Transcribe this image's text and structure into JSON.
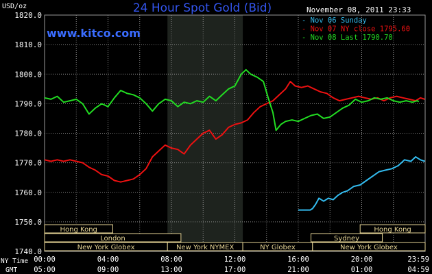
{
  "chart_data": {
    "type": "line",
    "title": "24 Hour Spot Gold (Bid)",
    "site": "www.kitco.com",
    "timestamp": "November 08, 2011 23:33",
    "ylabel": "USD/oz",
    "ylim": [
      1740,
      1820
    ],
    "y_ticks": [
      "1820.0",
      "1810.0",
      "1800.0",
      "1790.0",
      "1780.0",
      "1770.0",
      "1760.0",
      "1750.0",
      "1740.0"
    ],
    "xlim": [
      0,
      24
    ],
    "x_ticks_ny": [
      "00:00",
      "04:00",
      "08:00",
      "12:00",
      "16:00",
      "20:00",
      "23:59"
    ],
    "x_ticks_gmt": [
      "05:00",
      "09:00",
      "13:00",
      "17:00",
      "21:00",
      "01:00",
      "04:59"
    ],
    "x_row_label_ny": "NY Time",
    "x_row_label_gmt": "GMT",
    "highlight_band": [
      7.75,
      12.5
    ],
    "grid": true,
    "legend_position": "top-right",
    "series": [
      {
        "name": "Nov 06 Sunday",
        "color": "#33bbee",
        "points": [
          [
            16.0,
            1754.0
          ],
          [
            16.6,
            1754.0
          ],
          [
            16.75,
            1754.0
          ],
          [
            16.9,
            1754.5
          ],
          [
            17.1,
            1756.0
          ],
          [
            17.3,
            1758.0
          ],
          [
            17.6,
            1757.0
          ],
          [
            17.9,
            1758.0
          ],
          [
            18.2,
            1757.5
          ],
          [
            18.5,
            1759.0
          ],
          [
            18.8,
            1760.0
          ],
          [
            19.1,
            1760.5
          ],
          [
            19.5,
            1762.0
          ],
          [
            19.9,
            1762.5
          ],
          [
            20.3,
            1764.0
          ],
          [
            20.7,
            1765.5
          ],
          [
            21.1,
            1767.0
          ],
          [
            21.5,
            1767.5
          ],
          [
            21.9,
            1768.0
          ],
          [
            22.3,
            1769.0
          ],
          [
            22.7,
            1771.0
          ],
          [
            23.1,
            1770.5
          ],
          [
            23.4,
            1772.0
          ],
          [
            23.7,
            1771.0
          ],
          [
            23.98,
            1770.5
          ]
        ]
      },
      {
        "name": "Nov 07 NY close 1795.60",
        "color": "#ee1111",
        "points": [
          [
            0.0,
            1771.0
          ],
          [
            0.4,
            1770.5
          ],
          [
            0.8,
            1771.0
          ],
          [
            1.2,
            1770.5
          ],
          [
            1.6,
            1771.0
          ],
          [
            2.0,
            1770.5
          ],
          [
            2.4,
            1770.0
          ],
          [
            2.8,
            1768.5
          ],
          [
            3.2,
            1767.5
          ],
          [
            3.6,
            1766.0
          ],
          [
            4.0,
            1765.5
          ],
          [
            4.4,
            1764.0
          ],
          [
            4.8,
            1763.5
          ],
          [
            5.2,
            1764.0
          ],
          [
            5.6,
            1764.5
          ],
          [
            6.0,
            1766.0
          ],
          [
            6.4,
            1768.0
          ],
          [
            6.8,
            1772.0
          ],
          [
            7.2,
            1774.0
          ],
          [
            7.6,
            1776.0
          ],
          [
            8.0,
            1775.0
          ],
          [
            8.4,
            1774.5
          ],
          [
            8.8,
            1773.0
          ],
          [
            9.2,
            1776.0
          ],
          [
            9.6,
            1778.0
          ],
          [
            10.0,
            1780.0
          ],
          [
            10.4,
            1781.0
          ],
          [
            10.8,
            1778.0
          ],
          [
            11.2,
            1779.5
          ],
          [
            11.6,
            1782.0
          ],
          [
            12.0,
            1783.0
          ],
          [
            12.4,
            1783.5
          ],
          [
            12.8,
            1784.5
          ],
          [
            13.2,
            1787.0
          ],
          [
            13.6,
            1789.0
          ],
          [
            14.0,
            1790.0
          ],
          [
            14.4,
            1791.0
          ],
          [
            14.8,
            1793.0
          ],
          [
            15.2,
            1795.0
          ],
          [
            15.5,
            1797.5
          ],
          [
            15.8,
            1796.0
          ],
          [
            16.2,
            1795.5
          ],
          [
            16.6,
            1796.0
          ],
          [
            17.0,
            1795.0
          ],
          [
            17.4,
            1794.0
          ],
          [
            17.8,
            1793.5
          ],
          [
            18.2,
            1792.0
          ],
          [
            18.6,
            1791.0
          ],
          [
            19.0,
            1791.5
          ],
          [
            19.4,
            1792.0
          ],
          [
            19.8,
            1792.5
          ],
          [
            20.2,
            1792.0
          ],
          [
            20.6,
            1791.5
          ],
          [
            21.0,
            1792.0
          ],
          [
            21.4,
            1791.0
          ],
          [
            21.8,
            1792.0
          ],
          [
            22.2,
            1792.5
          ],
          [
            22.6,
            1792.0
          ],
          [
            23.0,
            1791.5
          ],
          [
            23.4,
            1791.0
          ],
          [
            23.7,
            1792.0
          ],
          [
            23.98,
            1791.5
          ]
        ]
      },
      {
        "name": "Nov 08 Last 1790.70",
        "color": "#22dd22",
        "points": [
          [
            0.0,
            1792.0
          ],
          [
            0.4,
            1791.5
          ],
          [
            0.8,
            1792.5
          ],
          [
            1.2,
            1790.5
          ],
          [
            1.6,
            1791.0
          ],
          [
            2.0,
            1791.5
          ],
          [
            2.4,
            1790.0
          ],
          [
            2.8,
            1786.5
          ],
          [
            3.2,
            1788.5
          ],
          [
            3.6,
            1790.0
          ],
          [
            4.0,
            1789.0
          ],
          [
            4.4,
            1792.0
          ],
          [
            4.8,
            1794.5
          ],
          [
            5.2,
            1793.5
          ],
          [
            5.6,
            1793.0
          ],
          [
            6.0,
            1792.0
          ],
          [
            6.4,
            1790.0
          ],
          [
            6.8,
            1787.5
          ],
          [
            7.2,
            1790.0
          ],
          [
            7.6,
            1791.5
          ],
          [
            8.0,
            1791.0
          ],
          [
            8.4,
            1789.0
          ],
          [
            8.8,
            1790.5
          ],
          [
            9.2,
            1790.0
          ],
          [
            9.6,
            1791.0
          ],
          [
            10.0,
            1790.5
          ],
          [
            10.4,
            1792.5
          ],
          [
            10.8,
            1791.0
          ],
          [
            11.2,
            1793.0
          ],
          [
            11.6,
            1795.0
          ],
          [
            12.0,
            1796.0
          ],
          [
            12.4,
            1800.0
          ],
          [
            12.7,
            1801.5
          ],
          [
            13.0,
            1800.0
          ],
          [
            13.4,
            1799.0
          ],
          [
            13.8,
            1797.5
          ],
          [
            14.1,
            1792.0
          ],
          [
            14.4,
            1787.0
          ],
          [
            14.6,
            1781.0
          ],
          [
            14.9,
            1783.0
          ],
          [
            15.2,
            1784.0
          ],
          [
            15.6,
            1784.5
          ],
          [
            16.0,
            1784.0
          ],
          [
            16.4,
            1785.0
          ],
          [
            16.8,
            1786.0
          ],
          [
            17.2,
            1786.5
          ],
          [
            17.6,
            1785.0
          ],
          [
            18.0,
            1785.5
          ],
          [
            18.4,
            1787.0
          ],
          [
            18.8,
            1788.5
          ],
          [
            19.2,
            1789.5
          ],
          [
            19.6,
            1791.5
          ],
          [
            20.0,
            1790.5
          ],
          [
            20.4,
            1791.0
          ],
          [
            20.8,
            1792.0
          ],
          [
            21.2,
            1791.5
          ],
          [
            21.6,
            1792.0
          ],
          [
            22.0,
            1791.0
          ],
          [
            22.4,
            1790.5
          ],
          [
            22.8,
            1791.0
          ],
          [
            23.2,
            1790.5
          ],
          [
            23.5,
            1791.0
          ],
          [
            23.6,
            1790.7
          ]
        ]
      }
    ],
    "market_sessions": [
      {
        "name": "Hong Kong",
        "row": 0,
        "start": 0.0,
        "end": 4.3
      },
      {
        "name": "Hong Kong",
        "row": 0,
        "start": 19.9,
        "end": 24.0
      },
      {
        "name": "London",
        "row": 1,
        "start": 0.0,
        "end": 8.6
      },
      {
        "name": "Sydney",
        "row": 1,
        "start": 16.8,
        "end": 21.3
      },
      {
        "name": "New York Globex",
        "row": 2,
        "start": 0.0,
        "end": 7.75
      },
      {
        "name": "New York NYMEX",
        "row": 2,
        "start": 7.75,
        "end": 12.5
      },
      {
        "name": "NY Globex",
        "row": 2,
        "start": 12.5,
        "end": 16.9
      },
      {
        "name": "New York Globex",
        "row": 2,
        "start": 16.9,
        "end": 24.0
      }
    ]
  }
}
